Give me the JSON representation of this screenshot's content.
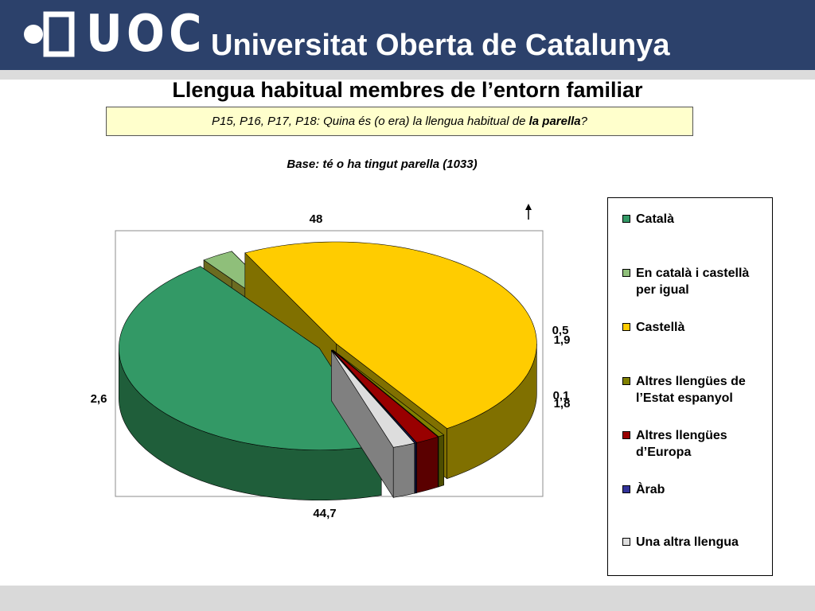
{
  "header": {
    "logo_text": "UOC",
    "university_name": "Universitat Oberta de Catalunya"
  },
  "slide": {
    "title": "Llengua habitual membres de l’entorn familiar",
    "question_prefix": "P15, P16, P17, P18: Quina és (o era) la llengua habitual de ",
    "question_emphasis": "la parella",
    "question_suffix": "?",
    "base_note": "Base: té o ha tingut parella (1033)"
  },
  "colors": {
    "header_bg": "#2c416b",
    "plot_area_bg": "#ffffff"
  },
  "chart_data": {
    "type": "pie",
    "subtype": "3d-exploded",
    "title": "",
    "legend_position": "right",
    "series": [
      {
        "name": "Català",
        "value": 44.7,
        "label": "44,7",
        "color": "#339966",
        "side": "#1f5e3a"
      },
      {
        "name": "En català i castellà per igual",
        "value": 2.6,
        "label": "2,6",
        "color": "#8fbf7a",
        "side": "#6b6b20"
      },
      {
        "name": "Castellà",
        "value": 48,
        "label": "48",
        "color": "#ffcc00",
        "side": "#807000"
      },
      {
        "name": "Altres llengües de l’Estat espanyol",
        "value": 0.5,
        "label": "0,5",
        "color": "#808000",
        "side": "#4d4d00"
      },
      {
        "name": "Altres llengües d’Europa",
        "value": 1.9,
        "label": "1,9",
        "color": "#990000",
        "side": "#5a0000"
      },
      {
        "name": "Àrab",
        "value": 0.1,
        "label": "0,1",
        "color": "#333399",
        "side": "#1a1a60"
      },
      {
        "name": "Una altra llengua",
        "value": 1.8,
        "label": "1,8",
        "color": "#dddddd",
        "side": "#808080"
      }
    ]
  }
}
